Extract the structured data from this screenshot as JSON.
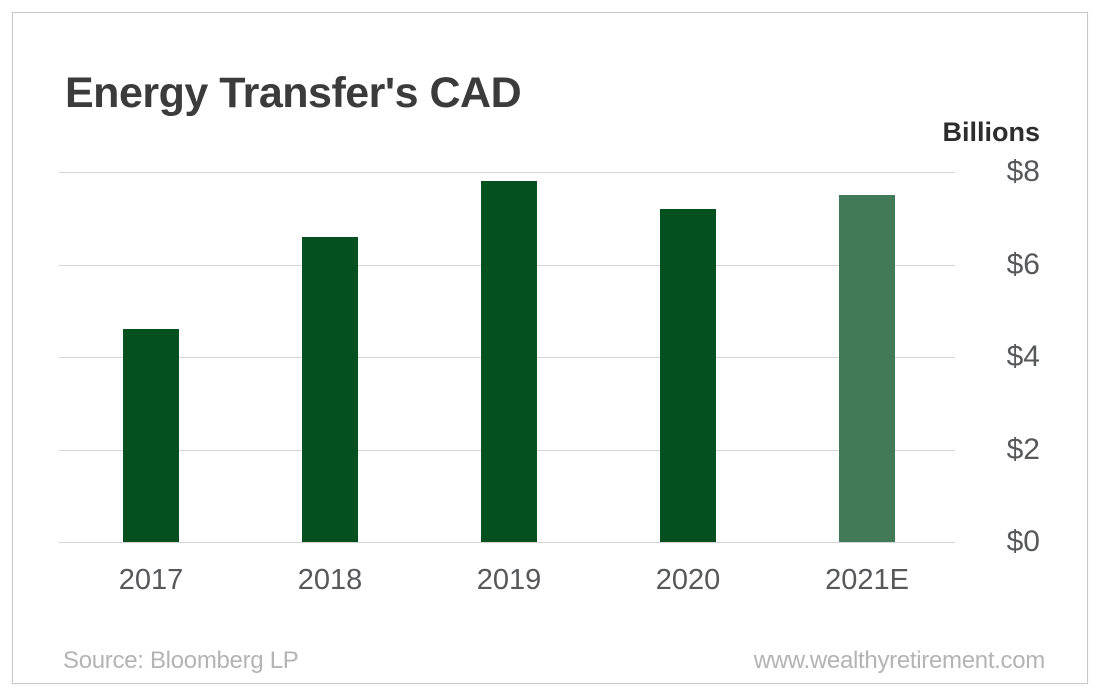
{
  "header": {
    "title": "Energy Transfer's CAD",
    "unit_label": "Billions"
  },
  "chart_data": {
    "type": "bar",
    "title": "Energy Transfer's CAD",
    "unit_label": "Billions",
    "xlabel": "",
    "ylabel": "Billions ($)",
    "categories": [
      "2017",
      "2018",
      "2019",
      "2020",
      "2021E"
    ],
    "values": [
      4.6,
      6.6,
      7.8,
      7.2,
      7.5
    ],
    "bar_colors": [
      "#05501f",
      "#05501f",
      "#05501f",
      "#05501f",
      "#427a58"
    ],
    "ylim": [
      0,
      8
    ],
    "yticks": [
      {
        "label": "$8",
        "value": 8
      },
      {
        "label": "$6",
        "value": 6
      },
      {
        "label": "$4",
        "value": 4
      },
      {
        "label": "$2",
        "value": 2
      },
      {
        "label": "$0",
        "value": 0
      }
    ],
    "grid": true,
    "legend": false,
    "axis_side": "right"
  },
  "footer": {
    "source": "Source: Bloomberg LP",
    "website": "www.wealthyretirement.com"
  },
  "colors": {
    "bar_default": "#05501f",
    "bar_estimate": "#427a58",
    "gridline": "#d4d4d4",
    "axis_text": "#57585a",
    "title_text": "#3b3b3b",
    "footer_text": "#b4b4b4",
    "frame_border": "#c9c9c9",
    "background": "#ffffff"
  }
}
